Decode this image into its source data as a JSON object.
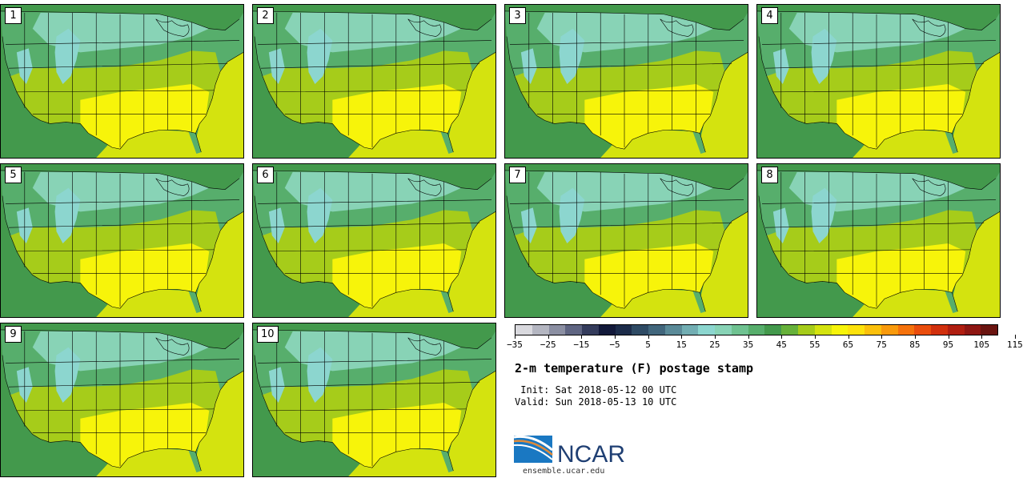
{
  "panels": [
    {
      "label": "1"
    },
    {
      "label": "2"
    },
    {
      "label": "3"
    },
    {
      "label": "4"
    },
    {
      "label": "5"
    },
    {
      "label": "6"
    },
    {
      "label": "7"
    },
    {
      "label": "8"
    },
    {
      "label": "9"
    },
    {
      "label": "10"
    }
  ],
  "colorbar": {
    "colors": [
      "#d9d9de",
      "#b4b6c1",
      "#8b8fa2",
      "#5f6582",
      "#343c5c",
      "#12193a",
      "#1c2c4a",
      "#2e4a64",
      "#41667c",
      "#5a8a98",
      "#72aeb3",
      "#8cd6cf",
      "#88d3b6",
      "#6fc291",
      "#57ae6c",
      "#43994c",
      "#66b13a",
      "#a6cc1a",
      "#d4e30f",
      "#f7f40a",
      "#fde20c",
      "#fbc00c",
      "#f99a0c",
      "#f5720c",
      "#ea4d0d",
      "#d1300d",
      "#b01e10",
      "#8e1612",
      "#6a1410"
    ],
    "tick_labels": [
      "−35",
      "−25",
      "−15",
      "−5",
      "5",
      "15",
      "25",
      "35",
      "45",
      "55",
      "65",
      "75",
      "85",
      "95",
      "105",
      "115"
    ]
  },
  "title": "2-m temperature (F) postage stamp",
  "init_text": " Init: Sat 2018-05-12 00 UTC",
  "valid_text": "Valid: Sun 2018-05-13 10 UTC",
  "logo_text": "NCAR",
  "url": "ensemble.ucar.edu",
  "map_colors": {
    "ocean_cool": "#43994c",
    "ocean_warm": "#d4e30f",
    "land_north": "#57ae6c",
    "land_cool": "#88d3b6",
    "land_mid": "#a6cc1a",
    "land_south": "#f7f40a",
    "mountain": "#8cd6cf",
    "boundary": "#000000"
  }
}
